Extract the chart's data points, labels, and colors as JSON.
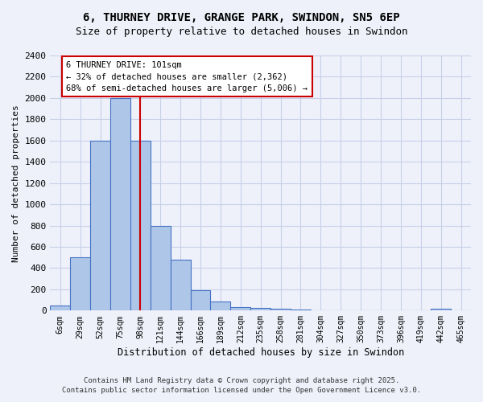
{
  "title_line1": "6, THURNEY DRIVE, GRANGE PARK, SWINDON, SN5 6EP",
  "title_line2": "Size of property relative to detached houses in Swindon",
  "xlabel": "Distribution of detached houses by size in Swindon",
  "ylabel": "Number of detached properties",
  "bin_labels": [
    "6sqm",
    "29sqm",
    "52sqm",
    "75sqm",
    "98sqm",
    "121sqm",
    "144sqm",
    "166sqm",
    "189sqm",
    "212sqm",
    "235sqm",
    "258sqm",
    "281sqm",
    "304sqm",
    "327sqm",
    "350sqm",
    "373sqm",
    "396sqm",
    "419sqm",
    "442sqm",
    "465sqm"
  ],
  "bar_heights": [
    50,
    500,
    1600,
    2000,
    1600,
    800,
    480,
    195,
    85,
    35,
    25,
    15,
    10,
    5,
    5,
    5,
    0,
    0,
    0,
    20,
    0
  ],
  "bar_color": "#aec6e8",
  "bar_edge_color": "#4472c4",
  "vline_x": 4.5,
  "vline_color": "#cc0000",
  "annotation_title": "6 THURNEY DRIVE: 101sqm",
  "annotation_line1": "← 32% of detached houses are smaller (2,362)",
  "annotation_line2": "68% of semi-detached houses are larger (5,006) →",
  "annotation_box_color": "#cc0000",
  "ylim": [
    0,
    2400
  ],
  "yticks": [
    0,
    200,
    400,
    600,
    800,
    1000,
    1200,
    1400,
    1600,
    1800,
    2000,
    2200,
    2400
  ],
  "footer_line1": "Contains HM Land Registry data © Crown copyright and database right 2025.",
  "footer_line2": "Contains public sector information licensed under the Open Government Licence v3.0.",
  "bg_color": "#eef1fa",
  "grid_color": "#c8d0e8"
}
